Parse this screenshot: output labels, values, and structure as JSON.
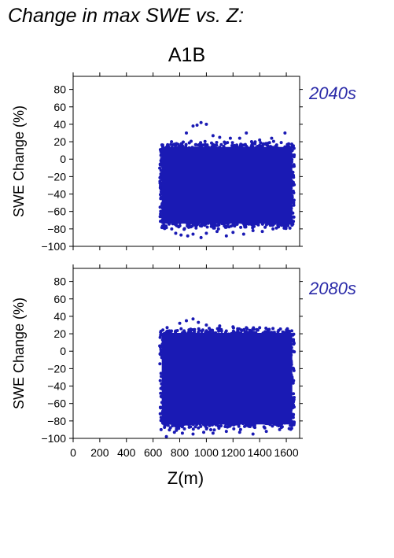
{
  "title": "Change in max SWE vs. Z:",
  "scenario": "A1B",
  "colors": {
    "points": "#1a1ab4",
    "label": "#2a2aa8"
  },
  "chart_data": [
    {
      "type": "scatter",
      "panel": "2040s",
      "ylabel": "SWE Change (%)",
      "xlabel": "",
      "xlim": [
        0,
        1700
      ],
      "ylim": [
        -100,
        95
      ],
      "yticks": [
        80,
        60,
        40,
        20,
        0,
        -20,
        -40,
        -60,
        -80,
        -100
      ],
      "ytick_labels": [
        "80",
        "60",
        "40",
        "20",
        "0",
        "−20",
        "−40",
        "−60",
        "−80",
        "−100"
      ],
      "cluster": {
        "x_range": [
          650,
          1660
        ],
        "y_top": 18,
        "y_bottom": -78
      },
      "outliers": [
        [
          665,
          -66
        ],
        [
          700,
          -72
        ],
        [
          740,
          -80
        ],
        [
          770,
          -85
        ],
        [
          810,
          -87
        ],
        [
          860,
          -88
        ],
        [
          900,
          -86
        ],
        [
          960,
          -90
        ],
        [
          1000,
          -85
        ],
        [
          1080,
          -83
        ],
        [
          1150,
          -88
        ],
        [
          1200,
          -84
        ],
        [
          1280,
          -86
        ],
        [
          1350,
          -82
        ],
        [
          1420,
          -83
        ],
        [
          1500,
          -80
        ],
        [
          1580,
          -76
        ],
        [
          1640,
          -70
        ],
        [
          850,
          30
        ],
        [
          900,
          38
        ],
        [
          930,
          39
        ],
        [
          960,
          42
        ],
        [
          1000,
          40
        ],
        [
          1050,
          27
        ],
        [
          1100,
          25
        ],
        [
          1180,
          24
        ],
        [
          1250,
          24
        ],
        [
          1300,
          30
        ],
        [
          1400,
          22
        ],
        [
          1490,
          24
        ],
        [
          1590,
          30
        ]
      ]
    },
    {
      "type": "scatter",
      "panel": "2080s",
      "ylabel": "SWE Change (%)",
      "xlabel": "Z(m)",
      "xlim": [
        0,
        1700
      ],
      "ylim": [
        -100,
        95
      ],
      "xticks": [
        0,
        200,
        400,
        600,
        800,
        1000,
        1200,
        1400,
        1600
      ],
      "xtick_labels": [
        "0",
        "200",
        "400",
        "600",
        "800",
        "1000",
        "1200",
        "1400",
        "1600"
      ],
      "yticks": [
        80,
        60,
        40,
        20,
        0,
        -20,
        -40,
        -60,
        -80,
        -100
      ],
      "ytick_labels": [
        "80",
        "60",
        "40",
        "20",
        "0",
        "−20",
        "−40",
        "−60",
        "−80",
        "−100"
      ],
      "cluster": {
        "x_range": [
          650,
          1660
        ],
        "y_top": 25,
        "y_bottom": -88
      },
      "outliers": [
        [
          660,
          -90
        ],
        [
          700,
          -98
        ],
        [
          760,
          -93
        ],
        [
          820,
          -94
        ],
        [
          900,
          -95
        ],
        [
          980,
          -93
        ],
        [
          1050,
          -94
        ],
        [
          1150,
          -92
        ],
        [
          1250,
          -93
        ],
        [
          1350,
          -95
        ],
        [
          1450,
          -92
        ],
        [
          1550,
          -90
        ],
        [
          1630,
          -85
        ],
        [
          800,
          32
        ],
        [
          850,
          35
        ],
        [
          900,
          37
        ],
        [
          940,
          33
        ],
        [
          1000,
          30
        ],
        [
          1100,
          29
        ],
        [
          1200,
          28
        ],
        [
          1300,
          27
        ],
        [
          1400,
          27
        ],
        [
          1500,
          26
        ],
        [
          1620,
          23
        ]
      ]
    }
  ]
}
